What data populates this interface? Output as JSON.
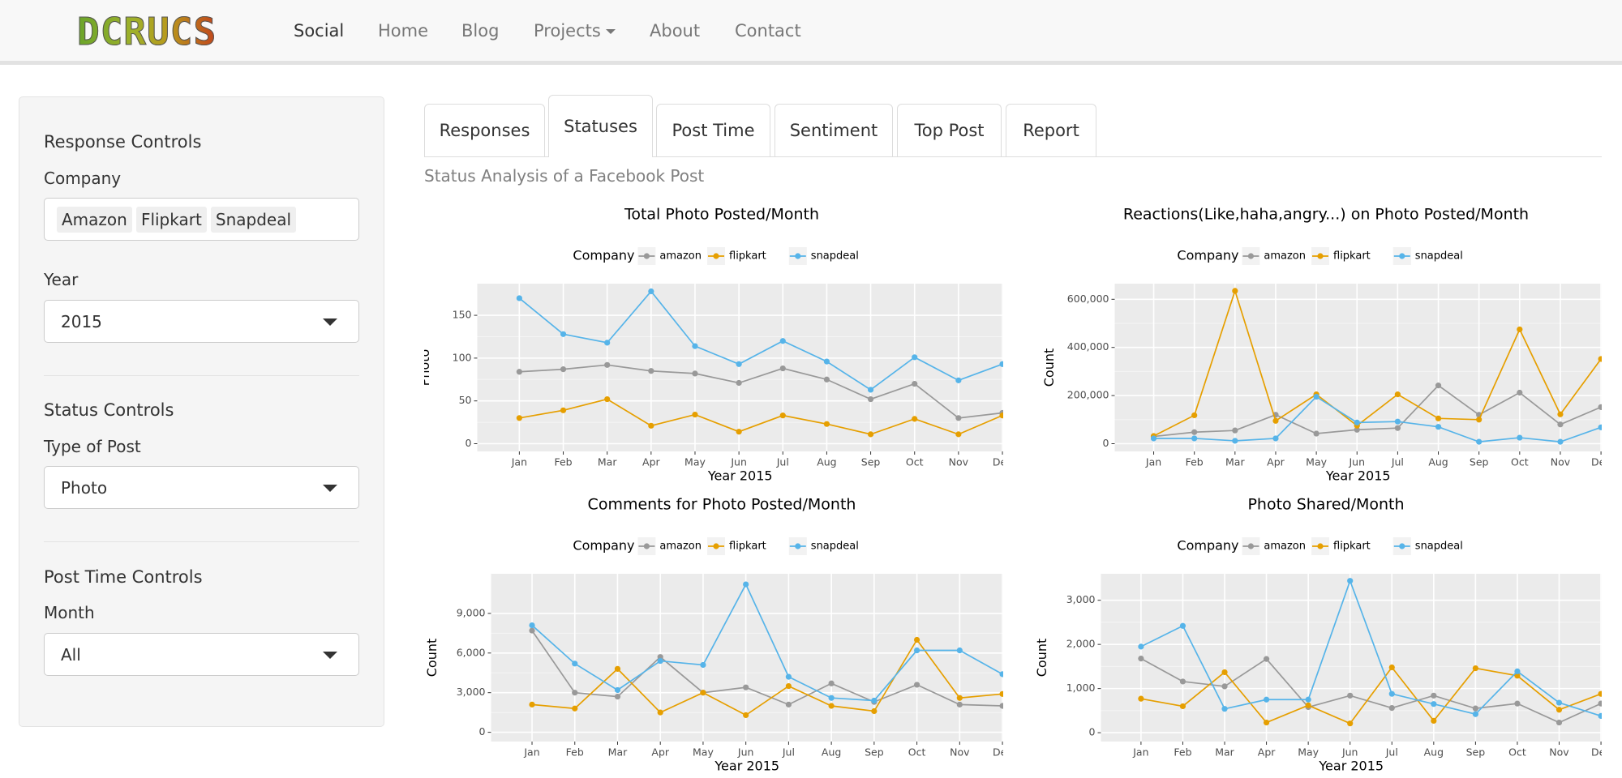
{
  "navbar": {
    "brand": "DCRUCS",
    "links": [
      "Social",
      "Home",
      "Blog",
      "Projects",
      "About",
      "Contact"
    ]
  },
  "sidebar": {
    "response_heading": "Response Controls",
    "company_label": "Company",
    "company_tags": [
      "Amazon",
      "Flipkart",
      "Snapdeal"
    ],
    "year_label": "Year",
    "year_value": "2015",
    "status_heading": "Status Controls",
    "post_type_label": "Type of Post",
    "post_type_value": "Photo",
    "post_time_heading": "Post Time Controls",
    "month_label": "Month",
    "month_value": "All"
  },
  "tabs": [
    "Responses",
    "Statuses",
    "Post Time",
    "Sentiment",
    "Top Post",
    "Report"
  ],
  "subtitle": "Status Analysis of a Facebook Post",
  "chart_data": [
    {
      "type": "line",
      "title": "Total Photo Posted/Month",
      "legend_title": "Company",
      "x_label": "Year 2015",
      "y_label": "Photo",
      "categories": [
        "Jan",
        "Feb",
        "Mar",
        "Apr",
        "May",
        "Jun",
        "Jul",
        "Aug",
        "Sep",
        "Oct",
        "Nov",
        "Dec"
      ],
      "series": [
        {
          "name": "amazon",
          "color": "#999999",
          "values": [
            84,
            87,
            92,
            85,
            82,
            71,
            88,
            75,
            52,
            70,
            30,
            36
          ]
        },
        {
          "name": "flipkart",
          "color": "#E69F00",
          "values": [
            30,
            39,
            52,
            21,
            34,
            14,
            33,
            23,
            11,
            29,
            11,
            33
          ]
        },
        {
          "name": "snapdeal",
          "color": "#56B4E9",
          "values": [
            170,
            128,
            118,
            178,
            114,
            93,
            120,
            96,
            63,
            101,
            74,
            93
          ]
        }
      ],
      "ylim": [
        -9,
        187
      ],
      "yticks": [
        0,
        50,
        100,
        150
      ],
      "grid": true
    },
    {
      "type": "line",
      "title": "Reactions(Like,haha,angry...) on Photo Posted/Month",
      "legend_title": "Company",
      "x_label": "Year 2015",
      "y_label": "Count",
      "categories": [
        "Jan",
        "Feb",
        "Mar",
        "Apr",
        "May",
        "Jun",
        "Jul",
        "Aug",
        "Sep",
        "Oct",
        "Nov",
        "Dec"
      ],
      "series": [
        {
          "name": "amazon",
          "color": "#999999",
          "values": [
            30000,
            48000,
            55000,
            120000,
            42000,
            58000,
            65000,
            242000,
            120000,
            212000,
            80000,
            152000
          ]
        },
        {
          "name": "flipkart",
          "color": "#E69F00",
          "values": [
            32000,
            118000,
            635000,
            95000,
            205000,
            75000,
            205000,
            105000,
            100000,
            475000,
            122000,
            352000
          ]
        },
        {
          "name": "snapdeal",
          "color": "#56B4E9",
          "values": [
            22000,
            22000,
            12000,
            22000,
            195000,
            88000,
            92000,
            70000,
            8000,
            25000,
            8000,
            68000
          ]
        }
      ],
      "ylim": [
        -32000,
        665000
      ],
      "yticks": [
        0,
        {
          "value": 200000,
          "label": "200,000"
        },
        {
          "value": 400000,
          "label": "400,000"
        },
        {
          "value": 600000,
          "label": "600,000"
        }
      ],
      "grid": true
    },
    {
      "type": "line",
      "title": "Comments for Photo Posted/Month",
      "legend_title": "Company",
      "x_label": "Year 2015",
      "y_label": "Count",
      "categories": [
        "Jan",
        "Feb",
        "Mar",
        "Apr",
        "May",
        "Jun",
        "Jul",
        "Aug",
        "Sep",
        "Oct",
        "Nov",
        "Dec"
      ],
      "series": [
        {
          "name": "amazon",
          "color": "#999999",
          "values": [
            7700,
            3000,
            2700,
            5700,
            3000,
            3400,
            2100,
            3700,
            2300,
            3600,
            2100,
            2000
          ]
        },
        {
          "name": "flipkart",
          "color": "#E69F00",
          "values": [
            2100,
            1800,
            4800,
            1500,
            3000,
            1300,
            3500,
            2000,
            1600,
            7000,
            2600,
            2900
          ]
        },
        {
          "name": "snapdeal",
          "color": "#56B4E9",
          "values": [
            8100,
            5200,
            3200,
            5400,
            5100,
            11200,
            4200,
            2600,
            2400,
            6200,
            6200,
            4400
          ]
        }
      ],
      "ylim": [
        -700,
        12000
      ],
      "yticks": [
        0,
        {
          "value": 3000,
          "label": "3,000"
        },
        {
          "value": 6000,
          "label": "6,000"
        },
        {
          "value": 9000,
          "label": "9,000"
        }
      ],
      "grid": true
    },
    {
      "type": "line",
      "title": "Photo Shared/Month",
      "legend_title": "Company",
      "x_label": "Year 2015",
      "y_label": "Count",
      "categories": [
        "Jan",
        "Feb",
        "Mar",
        "Apr",
        "May",
        "Jun",
        "Jul",
        "Aug",
        "Sep",
        "Oct",
        "Nov",
        "Dec"
      ],
      "series": [
        {
          "name": "amazon",
          "color": "#999999",
          "values": [
            1680,
            1160,
            1050,
            1670,
            580,
            840,
            560,
            840,
            550,
            660,
            230,
            660
          ]
        },
        {
          "name": "flipkart",
          "color": "#E69F00",
          "values": [
            770,
            600,
            1370,
            230,
            620,
            210,
            1480,
            270,
            1460,
            1290,
            520,
            880
          ]
        },
        {
          "name": "snapdeal",
          "color": "#56B4E9",
          "values": [
            1950,
            2420,
            540,
            750,
            750,
            3440,
            880,
            650,
            420,
            1390,
            680,
            380
          ]
        }
      ],
      "ylim": [
        -200,
        3600
      ],
      "yticks": [
        0,
        {
          "value": 1000,
          "label": "1,000"
        },
        {
          "value": 2000,
          "label": "2,000"
        },
        {
          "value": 3000,
          "label": "3,000"
        }
      ],
      "grid": true
    }
  ]
}
